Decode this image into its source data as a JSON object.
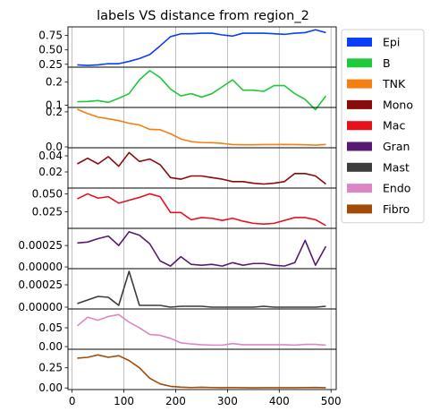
{
  "chart_data": {
    "type": "line",
    "title": "labels VS distance from region_2",
    "xlabel": "",
    "x": [
      10,
      30,
      50,
      70,
      90,
      110,
      130,
      150,
      170,
      190,
      210,
      230,
      250,
      270,
      290,
      310,
      330,
      350,
      370,
      390,
      410,
      430,
      450,
      470,
      490
    ],
    "xlim": [
      -8,
      510
    ],
    "xticks": [
      0,
      100,
      200,
      300,
      400,
      500
    ],
    "grid": "vertical",
    "legend_position": "right",
    "series": [
      {
        "name": "Epi",
        "color": "#0b3ff7",
        "ylim": [
          0.2,
          0.9
        ],
        "yticks": [
          0.25,
          0.5,
          0.75
        ],
        "ytick_labels": [
          "0.25",
          "0.50",
          "0.75"
        ],
        "values": [
          0.24,
          0.23,
          0.24,
          0.26,
          0.26,
          0.3,
          0.35,
          0.42,
          0.57,
          0.73,
          0.78,
          0.78,
          0.79,
          0.79,
          0.76,
          0.74,
          0.79,
          0.79,
          0.79,
          0.78,
          0.77,
          0.79,
          0.8,
          0.85,
          0.8
        ]
      },
      {
        "name": "B",
        "color": "#1ec93a",
        "ylim": [
          0.09,
          0.265
        ],
        "yticks": [
          0.1,
          0.2
        ],
        "ytick_labels": [
          "0.1",
          "0.2"
        ],
        "values": [
          0.115,
          0.116,
          0.12,
          0.112,
          0.13,
          0.15,
          0.21,
          0.25,
          0.22,
          0.17,
          0.14,
          0.15,
          0.135,
          0.15,
          0.18,
          0.21,
          0.165,
          0.165,
          0.16,
          0.185,
          0.185,
          0.15,
          0.125,
          0.08,
          0.14
        ]
      },
      {
        "name": "TNK",
        "color": "#f57e12",
        "ylim": [
          -0.005,
          0.225
        ],
        "yticks": [
          0.0,
          0.2
        ],
        "ytick_labels": [
          "0.0",
          "0.2"
        ],
        "values": [
          0.215,
          0.19,
          0.17,
          0.16,
          0.15,
          0.135,
          0.125,
          0.1,
          0.098,
          0.075,
          0.045,
          0.03,
          0.025,
          0.024,
          0.02,
          0.013,
          0.012,
          0.012,
          0.013,
          0.013,
          0.014,
          0.013,
          0.012,
          0.01,
          0.014
        ]
      },
      {
        "name": "Mono",
        "color": "#8b0a0a",
        "ylim": [
          0.0,
          0.05
        ],
        "yticks": [
          0.02,
          0.04
        ],
        "ytick_labels": [
          "0.02",
          "0.04"
        ],
        "values": [
          0.03,
          0.037,
          0.03,
          0.039,
          0.027,
          0.044,
          0.033,
          0.036,
          0.029,
          0.013,
          0.011,
          0.015,
          0.015,
          0.013,
          0.011,
          0.008,
          0.008,
          0.006,
          0.005,
          0.006,
          0.008,
          0.018,
          0.018,
          0.015,
          0.005
        ]
      },
      {
        "name": "Mac",
        "color": "#e8101d",
        "ylim": [
          0.002,
          0.058
        ],
        "yticks": [
          0.025,
          0.05
        ],
        "ytick_labels": [
          "0.025",
          "0.050"
        ],
        "values": [
          0.043,
          0.05,
          0.044,
          0.046,
          0.037,
          0.041,
          0.045,
          0.05,
          0.046,
          0.024,
          0.024,
          0.014,
          0.017,
          0.016,
          0.013,
          0.016,
          0.012,
          0.009,
          0.008,
          0.009,
          0.013,
          0.017,
          0.017,
          0.014,
          0.006
        ]
      },
      {
        "name": "Gran",
        "color": "#561a73",
        "ylim": [
          -2e-05,
          0.00045
        ],
        "yticks": [
          0.0,
          0.00025
        ],
        "ytick_labels": [
          "0.00000",
          "0.00025"
        ],
        "values": [
          0.00028,
          0.00029,
          0.00033,
          0.00036,
          0.00025,
          0.00041,
          0.00037,
          0.00027,
          7e-05,
          1e-05,
          0.00012,
          3e-05,
          2e-05,
          3e-05,
          1e-05,
          5e-05,
          2e-05,
          4e-05,
          4e-05,
          2e-05,
          1e-05,
          5e-05,
          0.00031,
          2e-05,
          0.00024
        ]
      },
      {
        "name": "Mast",
        "color": "#3c3c3c",
        "ylim": [
          -2e-05,
          0.00043
        ],
        "yticks": [
          0.0,
          0.00025
        ],
        "ytick_labels": [
          "0.00000",
          "0.00025"
        ],
        "values": [
          4e-05,
          8e-05,
          0.00012,
          0.00011,
          2e-05,
          0.0004,
          2e-05,
          2e-05,
          2e-05,
          0.0,
          1e-05,
          1e-05,
          1e-05,
          0.0,
          0.0,
          0.0,
          0.0,
          0.0,
          1e-05,
          0.0,
          0.0,
          0.0,
          0.0,
          0.0,
          1e-05
        ]
      },
      {
        "name": "Endo",
        "color": "#dd86c4",
        "ylim": [
          -0.007,
          0.1
        ],
        "yticks": [
          0.0,
          0.05
        ],
        "ytick_labels": [
          "0.00",
          "0.05"
        ],
        "values": [
          0.055,
          0.078,
          0.07,
          0.08,
          0.085,
          0.065,
          0.05,
          0.032,
          0.03,
          0.022,
          0.01,
          0.007,
          0.005,
          0.004,
          0.004,
          0.008,
          0.005,
          0.005,
          0.005,
          0.005,
          0.005,
          0.004,
          0.006,
          0.006,
          0.004
        ]
      },
      {
        "name": "Fibro",
        "color": "#a04c07",
        "ylim": [
          -0.02,
          0.48
        ],
        "yticks": [
          0.0,
          0.25
        ],
        "ytick_labels": [
          "0.00",
          "0.25"
        ],
        "values": [
          0.37,
          0.38,
          0.41,
          0.38,
          0.4,
          0.34,
          0.25,
          0.12,
          0.05,
          0.02,
          0.01,
          0.005,
          0.008,
          0.005,
          0.003,
          0.005,
          0.003,
          0.002,
          0.003,
          0.003,
          0.003,
          0.003,
          0.004,
          0.006,
          0.003
        ]
      }
    ]
  }
}
